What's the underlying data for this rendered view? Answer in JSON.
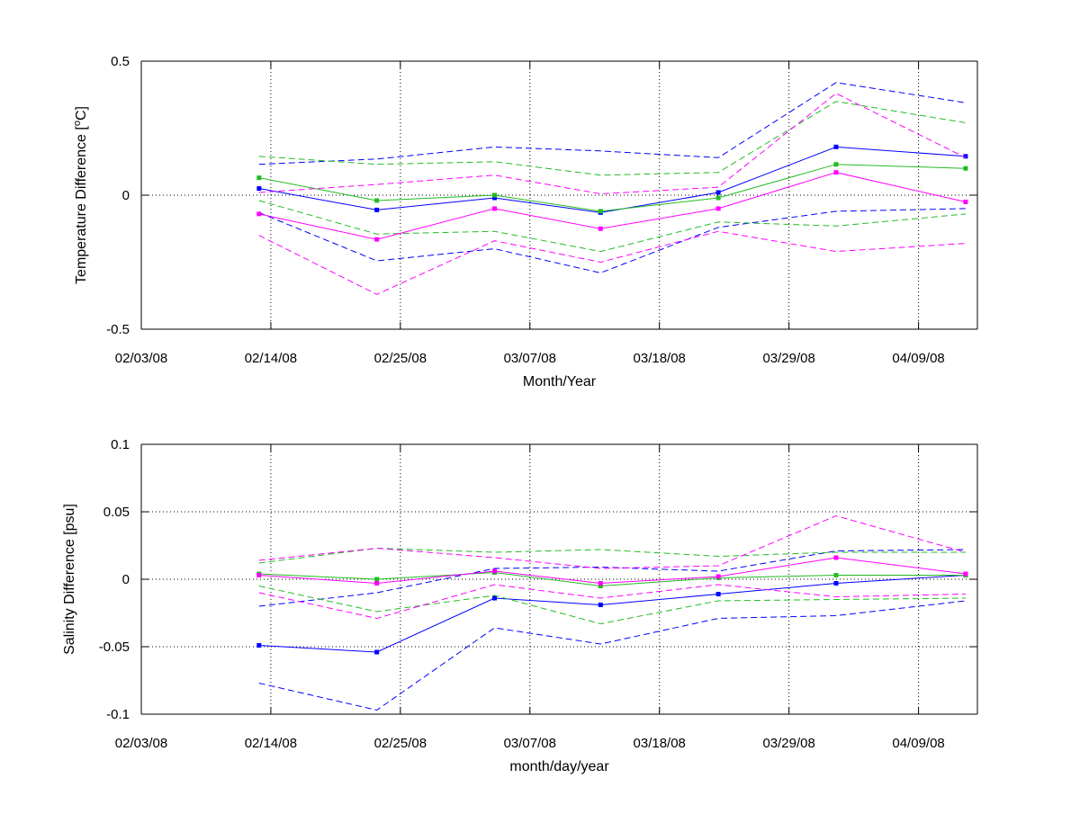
{
  "chart_data": [
    {
      "type": "line",
      "title": "",
      "xlabel": "Month/Year",
      "ylabel": "Temperature Difference [°C]",
      "ylabel_parts": {
        "pre": "Temperature Difference [",
        "sup": "o",
        "post": "C]"
      },
      "xlim": [
        "02/03/08",
        "04/14/08"
      ],
      "ylim": [
        -0.5,
        0.5
      ],
      "x_ticks": [
        "02/03/08",
        "02/14/08",
        "02/25/08",
        "03/07/08",
        "03/18/08",
        "03/29/08",
        "04/09/08"
      ],
      "y_ticks": [
        {
          "value": -0.5,
          "label": "-0.5"
        },
        {
          "value": 0,
          "label": "0"
        },
        {
          "value": 0.5,
          "label": "0.5"
        }
      ],
      "grid": true,
      "x": [
        "02/13/08",
        "02/23/08",
        "03/04/08",
        "03/13/08",
        "03/23/08",
        "04/02/08",
        "04/13/08"
      ],
      "series": [
        {
          "color": "#0000ff",
          "style": "solid",
          "markers": true,
          "values": [
            0.025,
            -0.055,
            -0.01,
            -0.065,
            0.01,
            0.18,
            0.145
          ]
        },
        {
          "color": "#0000ff",
          "style": "dashed",
          "markers": false,
          "values": [
            0.115,
            0.135,
            0.18,
            0.165,
            0.14,
            0.42,
            0.345
          ]
        },
        {
          "color": "#0000ff",
          "style": "dashed",
          "markers": false,
          "values": [
            -0.065,
            -0.245,
            -0.2,
            -0.29,
            -0.12,
            -0.06,
            -0.05
          ]
        },
        {
          "color": "#22bb22",
          "style": "solid",
          "markers": true,
          "values": [
            0.065,
            -0.02,
            0.0,
            -0.06,
            -0.01,
            0.115,
            0.1
          ]
        },
        {
          "color": "#22bb22",
          "style": "dashed",
          "markers": false,
          "values": [
            0.145,
            0.115,
            0.125,
            0.075,
            0.085,
            0.35,
            0.27
          ]
        },
        {
          "color": "#22bb22",
          "style": "dashed",
          "markers": false,
          "values": [
            -0.02,
            -0.145,
            -0.135,
            -0.21,
            -0.1,
            -0.115,
            -0.07
          ]
        },
        {
          "color": "#ff00ff",
          "style": "solid",
          "markers": true,
          "values": [
            -0.07,
            -0.165,
            -0.05,
            -0.125,
            -0.05,
            0.085,
            -0.025
          ]
        },
        {
          "color": "#ff00ff",
          "style": "dashed",
          "markers": false,
          "values": [
            0.01,
            0.04,
            0.075,
            0.005,
            0.03,
            0.38,
            0.14
          ]
        },
        {
          "color": "#ff00ff",
          "style": "dashed",
          "markers": false,
          "values": [
            -0.15,
            -0.37,
            -0.17,
            -0.25,
            -0.135,
            -0.21,
            -0.18
          ]
        }
      ]
    },
    {
      "type": "line",
      "title": "",
      "xlabel": "month/day/year",
      "ylabel": "Salinity Difference [psu]",
      "xlim": [
        "02/03/08",
        "04/14/08"
      ],
      "ylim": [
        -0.1,
        0.1
      ],
      "x_ticks": [
        "02/03/08",
        "02/14/08",
        "02/25/08",
        "03/07/08",
        "03/18/08",
        "03/29/08",
        "04/09/08"
      ],
      "y_ticks": [
        {
          "value": -0.1,
          "label": "-0.1"
        },
        {
          "value": -0.05,
          "label": "-0.05"
        },
        {
          "value": 0,
          "label": "0"
        },
        {
          "value": 0.05,
          "label": "0.05"
        },
        {
          "value": 0.1,
          "label": "0.1"
        }
      ],
      "grid": true,
      "x": [
        "02/13/08",
        "02/23/08",
        "03/04/08",
        "03/13/08",
        "03/23/08",
        "04/02/08",
        "04/13/08"
      ],
      "series": [
        {
          "color": "#0000ff",
          "style": "solid",
          "markers": true,
          "values": [
            -0.049,
            -0.054,
            -0.014,
            -0.019,
            -0.011,
            -0.003,
            0.003
          ]
        },
        {
          "color": "#0000ff",
          "style": "dashed",
          "markers": false,
          "values": [
            -0.02,
            -0.01,
            0.008,
            0.009,
            0.006,
            0.021,
            0.022
          ]
        },
        {
          "color": "#0000ff",
          "style": "dashed",
          "markers": false,
          "values": [
            -0.077,
            -0.097,
            -0.036,
            -0.048,
            -0.029,
            -0.027,
            -0.016
          ]
        },
        {
          "color": "#22bb22",
          "style": "solid",
          "markers": true,
          "values": [
            0.004,
            0.0,
            0.005,
            -0.005,
            0.001,
            0.003,
            0.003
          ]
        },
        {
          "color": "#22bb22",
          "style": "dashed",
          "markers": false,
          "values": [
            0.012,
            0.023,
            0.02,
            0.022,
            0.017,
            0.02,
            0.02
          ]
        },
        {
          "color": "#22bb22",
          "style": "dashed",
          "markers": false,
          "values": [
            -0.005,
            -0.024,
            -0.012,
            -0.033,
            -0.016,
            -0.015,
            -0.014
          ]
        },
        {
          "color": "#ff00ff",
          "style": "solid",
          "markers": true,
          "values": [
            0.003,
            -0.003,
            0.006,
            -0.003,
            0.002,
            0.016,
            0.004
          ]
        },
        {
          "color": "#ff00ff",
          "style": "dashed",
          "markers": false,
          "values": [
            0.014,
            0.023,
            0.016,
            0.008,
            0.01,
            0.047,
            0.02
          ]
        },
        {
          "color": "#ff00ff",
          "style": "dashed",
          "markers": false,
          "values": [
            -0.01,
            -0.029,
            -0.004,
            -0.014,
            -0.004,
            -0.013,
            -0.011
          ]
        }
      ]
    }
  ]
}
